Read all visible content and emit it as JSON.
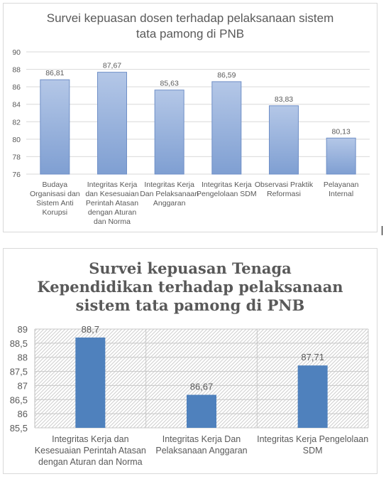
{
  "chart_data": [
    {
      "type": "bar",
      "title": "Survei kepuasan dosen terhadap pelaksanaan sistem\ntata pamong di PNB",
      "categories": [
        "Budaya\nOrganisasi dan\nSistem Anti\nKorupsi",
        "Integritas Kerja\ndan Kesesuaian\nPerintah Atasan\ndengan Aturan\ndan Norma",
        "Integritas Kerja\nDan Pelaksanaan\nAnggaran",
        "Integritas Kerja\nPengelolaan SDM",
        "Observasi Praktik\nReformasi",
        "Pelayanan\nInternal"
      ],
      "values": [
        86.81,
        87.67,
        85.63,
        86.59,
        83.83,
        80.13
      ],
      "data_labels": [
        "86,81",
        "87,67",
        "85,63",
        "86,59",
        "83,83",
        "80,13"
      ],
      "ylim": [
        76,
        90
      ],
      "yticks": [
        "76",
        "78",
        "80",
        "82",
        "84",
        "86",
        "88",
        "90"
      ],
      "grid": true,
      "bar_style": "gradient-blue"
    },
    {
      "type": "bar",
      "title": "Survei kepuasan Tenaga\nKependidikan terhadap pelaksanaan\nsistem tata pamong di PNB",
      "categories": [
        "Integritas Kerja dan\nKesesuaian Perintah Atasan\ndengan Aturan dan Norma",
        "Integritas Kerja Dan\nPelaksanaan Anggaran",
        "Integritas Kerja Pengelolaan\nSDM"
      ],
      "values": [
        88.7,
        86.67,
        87.71
      ],
      "data_labels": [
        "88,7",
        "86,67",
        "87,71"
      ],
      "ylim": [
        85.5,
        89
      ],
      "yticks": [
        "85,5",
        "86",
        "86,5",
        "87",
        "87,5",
        "88",
        "88,5",
        "89"
      ],
      "grid": true,
      "bar_style": "solid-blue-hatched-background"
    }
  ],
  "colors": {
    "bar1_top": "#b4c7e7",
    "bar1_bottom": "#7f9fd2",
    "bar1_border": "#6f8fc7",
    "bar2": "#4f81bd",
    "grid": "#d9d9d9",
    "text": "#595959",
    "title2": "#595959"
  }
}
